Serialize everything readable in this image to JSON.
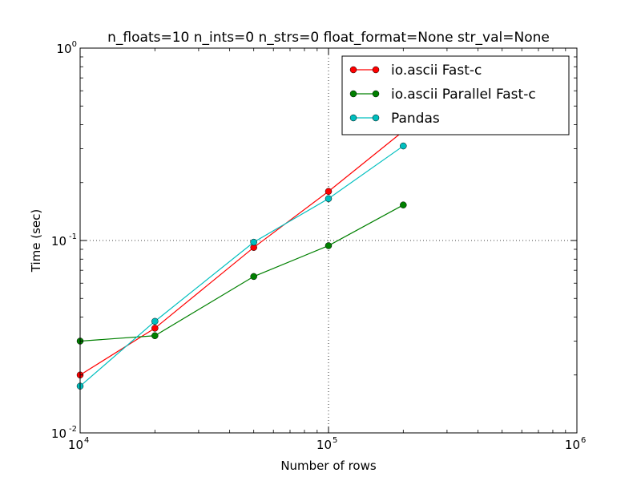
{
  "chart_data": {
    "type": "line",
    "title": "n_floats=10 n_ints=0 n_strs=0 float_format=None str_val=None",
    "xlabel": "Number of rows",
    "ylabel": "Time (sec)",
    "xscale": "log",
    "yscale": "log",
    "xlim": [
      10000,
      1000000
    ],
    "ylim": [
      0.01,
      1
    ],
    "x_ticks": [
      {
        "value": 10000,
        "base": "10",
        "exp": "4"
      },
      {
        "value": 100000,
        "base": "10",
        "exp": "5"
      },
      {
        "value": 1000000,
        "base": "10",
        "exp": "6"
      }
    ],
    "y_ticks": [
      {
        "value": 0.01,
        "base": "10",
        "exp": "-2"
      },
      {
        "value": 0.1,
        "base": "10",
        "exp": "-1"
      },
      {
        "value": 1,
        "base": "10",
        "exp": "0"
      }
    ],
    "grid": "major",
    "legend_position": "top-right",
    "x": [
      10000,
      20000,
      50000,
      100000,
      200000
    ],
    "series": [
      {
        "name": "io.ascii Fast-c",
        "color": "#ff0000",
        "values": [
          0.02,
          0.035,
          0.092,
          0.18,
          0.37
        ]
      },
      {
        "name": "io.ascii Parallel Fast-c",
        "color": "#008000",
        "values": [
          0.03,
          0.032,
          0.065,
          0.094,
          0.153
        ]
      },
      {
        "name": "Pandas",
        "color": "#00bfbf",
        "values": [
          0.0175,
          0.038,
          0.098,
          0.165,
          0.31
        ]
      }
    ]
  }
}
